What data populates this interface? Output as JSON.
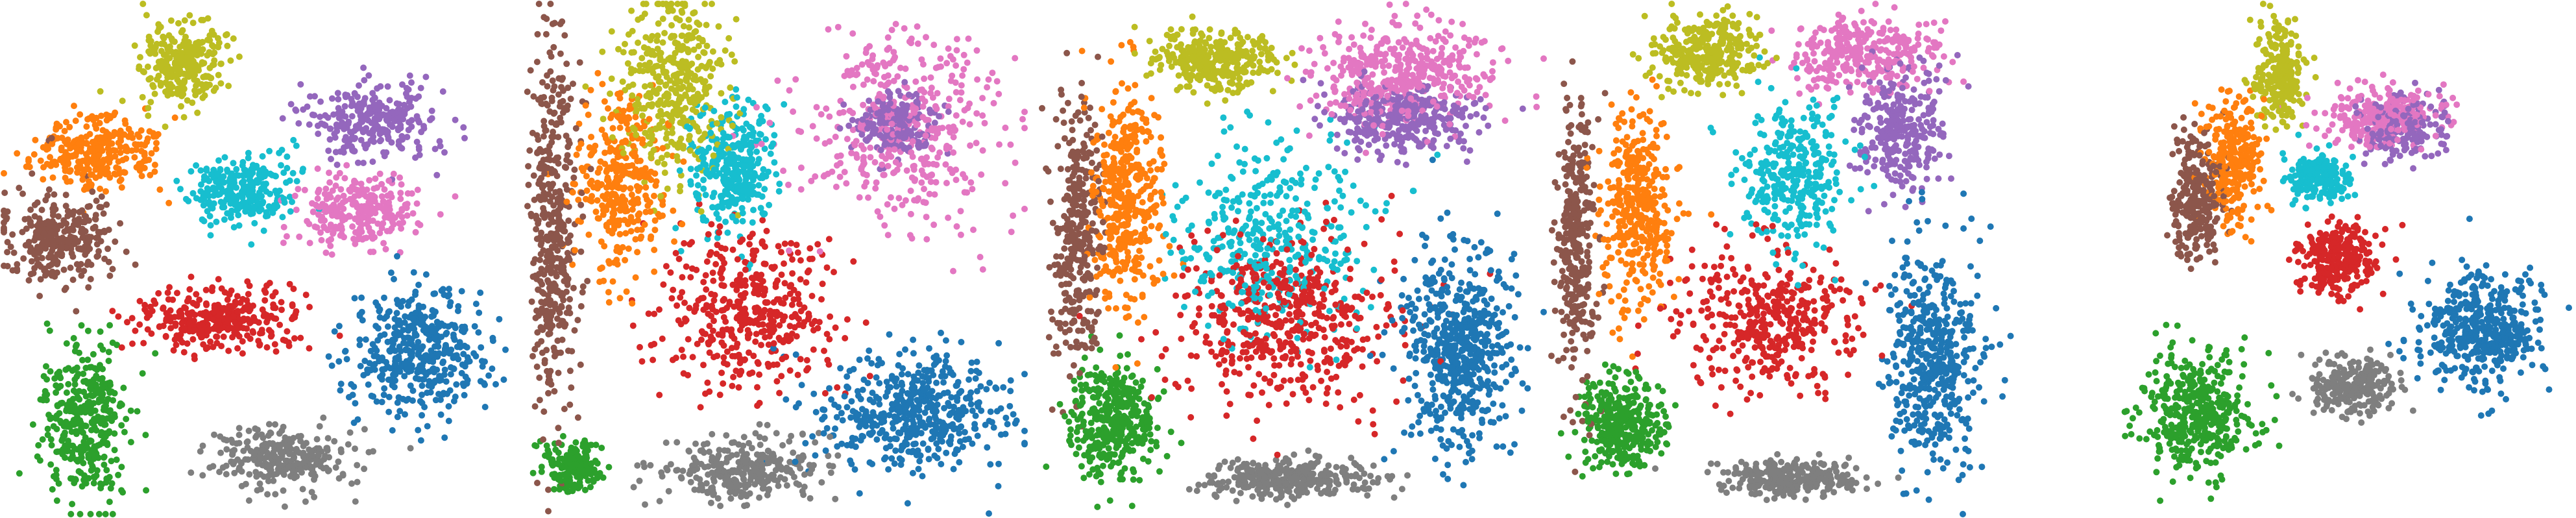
{
  "palette": {
    "blue": "#1f77b4",
    "orange": "#ff7f0e",
    "green": "#2ca02c",
    "red": "#d62728",
    "purple": "#9467bd",
    "brown": "#8c564b",
    "pink": "#e377c2",
    "gray": "#7f7f7f",
    "olive": "#bcbd22",
    "cyan": "#17becf"
  },
  "chart_data": [
    {
      "type": "scatter",
      "panel": 1,
      "grid": false,
      "axes": "off",
      "xlim": [
        0,
        1
      ],
      "ylim": [
        0,
        1
      ],
      "clusters": [
        {
          "color": "olive",
          "cx": 0.36,
          "cy": 0.11,
          "sx": 0.07,
          "sy": 0.07,
          "n": 260
        },
        {
          "color": "orange",
          "cx": 0.18,
          "cy": 0.29,
          "sx": 0.1,
          "sy": 0.06,
          "n": 300
        },
        {
          "color": "purple",
          "cx": 0.73,
          "cy": 0.23,
          "sx": 0.1,
          "sy": 0.06,
          "n": 280
        },
        {
          "color": "cyan",
          "cx": 0.48,
          "cy": 0.37,
          "sx": 0.08,
          "sy": 0.06,
          "n": 260
        },
        {
          "color": "pink",
          "cx": 0.7,
          "cy": 0.41,
          "sx": 0.1,
          "sy": 0.06,
          "n": 270
        },
        {
          "color": "brown",
          "cx": 0.11,
          "cy": 0.46,
          "sx": 0.09,
          "sy": 0.08,
          "n": 300
        },
        {
          "color": "red",
          "cx": 0.43,
          "cy": 0.62,
          "sx": 0.12,
          "sy": 0.05,
          "n": 330
        },
        {
          "color": "blue",
          "cx": 0.83,
          "cy": 0.68,
          "sx": 0.12,
          "sy": 0.1,
          "n": 420
        },
        {
          "color": "green",
          "cx": 0.16,
          "cy": 0.82,
          "sx": 0.07,
          "sy": 0.12,
          "n": 380
        },
        {
          "color": "gray",
          "cx": 0.55,
          "cy": 0.89,
          "sx": 0.11,
          "sy": 0.05,
          "n": 280
        }
      ]
    },
    {
      "type": "scatter",
      "panel": 2,
      "grid": false,
      "axes": "off",
      "xlim": [
        0,
        1
      ],
      "ylim": [
        0,
        1
      ],
      "clusters": [
        {
          "color": "brown",
          "cx": 0.06,
          "cy": 0.45,
          "sx": 0.04,
          "sy": 0.3,
          "n": 430
        },
        {
          "color": "olive",
          "cx": 0.3,
          "cy": 0.16,
          "sx": 0.09,
          "sy": 0.14,
          "n": 380
        },
        {
          "color": "orange",
          "cx": 0.2,
          "cy": 0.36,
          "sx": 0.07,
          "sy": 0.14,
          "n": 330
        },
        {
          "color": "cyan",
          "cx": 0.42,
          "cy": 0.32,
          "sx": 0.07,
          "sy": 0.1,
          "n": 330
        },
        {
          "color": "pink",
          "cx": 0.75,
          "cy": 0.25,
          "sx": 0.17,
          "sy": 0.16,
          "n": 420
        },
        {
          "color": "purple",
          "cx": 0.74,
          "cy": 0.24,
          "sx": 0.07,
          "sy": 0.05,
          "n": 200
        },
        {
          "color": "red",
          "cx": 0.45,
          "cy": 0.6,
          "sx": 0.15,
          "sy": 0.12,
          "n": 420
        },
        {
          "color": "blue",
          "cx": 0.78,
          "cy": 0.8,
          "sx": 0.15,
          "sy": 0.1,
          "n": 480
        },
        {
          "color": "green",
          "cx": 0.1,
          "cy": 0.91,
          "sx": 0.05,
          "sy": 0.04,
          "n": 170
        },
        {
          "color": "gray",
          "cx": 0.44,
          "cy": 0.91,
          "sx": 0.13,
          "sy": 0.05,
          "n": 300
        }
      ]
    },
    {
      "type": "scatter",
      "panel": 3,
      "grid": false,
      "axes": "off",
      "xlim": [
        0,
        1
      ],
      "ylim": [
        0,
        1
      ],
      "clusters": [
        {
          "color": "olive",
          "cx": 0.34,
          "cy": 0.11,
          "sx": 0.1,
          "sy": 0.05,
          "n": 330
        },
        {
          "color": "cyan",
          "cx": 0.46,
          "cy": 0.46,
          "sx": 0.16,
          "sy": 0.16,
          "n": 380
        },
        {
          "color": "purple",
          "cx": 0.72,
          "cy": 0.22,
          "sx": 0.12,
          "sy": 0.06,
          "n": 330
        },
        {
          "color": "pink",
          "cx": 0.72,
          "cy": 0.14,
          "sx": 0.14,
          "sy": 0.08,
          "n": 420
        },
        {
          "color": "brown",
          "cx": 0.07,
          "cy": 0.45,
          "sx": 0.04,
          "sy": 0.22,
          "n": 330
        },
        {
          "color": "orange",
          "cx": 0.17,
          "cy": 0.38,
          "sx": 0.06,
          "sy": 0.18,
          "n": 420
        },
        {
          "color": "red",
          "cx": 0.49,
          "cy": 0.62,
          "sx": 0.18,
          "sy": 0.14,
          "n": 500
        },
        {
          "color": "blue",
          "cx": 0.83,
          "cy": 0.68,
          "sx": 0.09,
          "sy": 0.16,
          "n": 560
        },
        {
          "color": "green",
          "cx": 0.14,
          "cy": 0.82,
          "sx": 0.07,
          "sy": 0.09,
          "n": 380
        },
        {
          "color": "gray",
          "cx": 0.5,
          "cy": 0.93,
          "sx": 0.14,
          "sy": 0.03,
          "n": 330
        }
      ]
    },
    {
      "type": "scatter",
      "panel": 4,
      "grid": false,
      "axes": "off",
      "xlim": [
        0,
        1
      ],
      "ylim": [
        0,
        1
      ],
      "clusters": [
        {
          "color": "olive",
          "cx": 0.31,
          "cy": 0.1,
          "sx": 0.09,
          "sy": 0.06,
          "n": 320
        },
        {
          "color": "pink",
          "cx": 0.62,
          "cy": 0.1,
          "sx": 0.12,
          "sy": 0.06,
          "n": 300
        },
        {
          "color": "purple",
          "cx": 0.7,
          "cy": 0.25,
          "sx": 0.07,
          "sy": 0.1,
          "n": 290
        },
        {
          "color": "cyan",
          "cx": 0.48,
          "cy": 0.33,
          "sx": 0.09,
          "sy": 0.12,
          "n": 320
        },
        {
          "color": "brown",
          "cx": 0.05,
          "cy": 0.48,
          "sx": 0.03,
          "sy": 0.22,
          "n": 330
        },
        {
          "color": "orange",
          "cx": 0.17,
          "cy": 0.4,
          "sx": 0.06,
          "sy": 0.16,
          "n": 380
        },
        {
          "color": "red",
          "cx": 0.44,
          "cy": 0.62,
          "sx": 0.15,
          "sy": 0.12,
          "n": 400
        },
        {
          "color": "blue",
          "cx": 0.76,
          "cy": 0.7,
          "sx": 0.08,
          "sy": 0.18,
          "n": 470
        },
        {
          "color": "green",
          "cx": 0.14,
          "cy": 0.82,
          "sx": 0.07,
          "sy": 0.08,
          "n": 340
        },
        {
          "color": "gray",
          "cx": 0.48,
          "cy": 0.93,
          "sx": 0.12,
          "sy": 0.03,
          "n": 280
        }
      ]
    },
    {
      "type": "scatter",
      "panel": 5,
      "grid": false,
      "axes": "off",
      "xlim": [
        0,
        1
      ],
      "ylim": [
        0,
        1
      ],
      "clusters": [
        {
          "color": "olive",
          "cx": 0.42,
          "cy": 0.14,
          "sx": 0.04,
          "sy": 0.09,
          "n": 240
        },
        {
          "color": "orange",
          "cx": 0.33,
          "cy": 0.3,
          "sx": 0.05,
          "sy": 0.1,
          "n": 280
        },
        {
          "color": "brown",
          "cx": 0.26,
          "cy": 0.38,
          "sx": 0.04,
          "sy": 0.1,
          "n": 260
        },
        {
          "color": "pink",
          "cx": 0.63,
          "cy": 0.22,
          "sx": 0.1,
          "sy": 0.05,
          "n": 260
        },
        {
          "color": "purple",
          "cx": 0.67,
          "cy": 0.24,
          "sx": 0.07,
          "sy": 0.05,
          "n": 220
        },
        {
          "color": "cyan",
          "cx": 0.5,
          "cy": 0.34,
          "sx": 0.05,
          "sy": 0.04,
          "n": 200
        },
        {
          "color": "red",
          "cx": 0.54,
          "cy": 0.5,
          "sx": 0.07,
          "sy": 0.06,
          "n": 260
        },
        {
          "color": "blue",
          "cx": 0.82,
          "cy": 0.64,
          "sx": 0.1,
          "sy": 0.09,
          "n": 440
        },
        {
          "color": "green",
          "cx": 0.26,
          "cy": 0.8,
          "sx": 0.09,
          "sy": 0.1,
          "n": 400
        },
        {
          "color": "gray",
          "cx": 0.57,
          "cy": 0.75,
          "sx": 0.07,
          "sy": 0.05,
          "n": 240
        }
      ]
    }
  ]
}
